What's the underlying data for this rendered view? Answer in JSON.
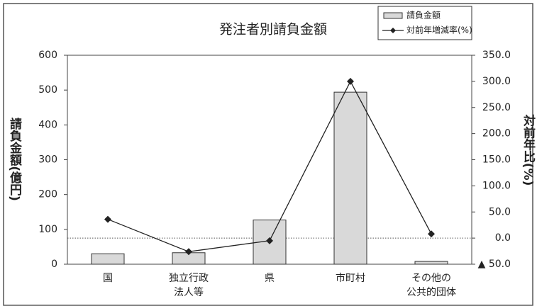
{
  "chart_data": {
    "type": "bar_line",
    "title": "発注者別請負金額",
    "categories": [
      [
        "国"
      ],
      [
        "独立行政",
        "法人等"
      ],
      [
        "県"
      ],
      [
        "市町村"
      ],
      [
        "その他の",
        "公共的団体"
      ]
    ],
    "series": [
      {
        "name": "請負金額",
        "type": "bar",
        "color": "#d9d9d9",
        "values": [
          30,
          33,
          127,
          494,
          8
        ]
      },
      {
        "name": "対前年増減率(%)",
        "type": "line",
        "axis": "y2",
        "color": "#222222",
        "values": [
          36,
          -26,
          -5,
          300,
          8
        ]
      }
    ],
    "ylabel": "請負金額(億円)",
    "y2label": "対前年比(%)",
    "ylim": [
      0,
      600
    ],
    "yticks": [
      0,
      100,
      200,
      300,
      400,
      500,
      600
    ],
    "y2lim": [
      -50,
      350
    ],
    "y2ticks": [
      {
        "value": -50,
        "label": "▲ 50.0"
      },
      {
        "value": 0,
        "label": "0.0"
      },
      {
        "value": 50,
        "label": "50.0"
      },
      {
        "value": 100,
        "label": "100.0"
      },
      {
        "value": 150,
        "label": "150.0"
      },
      {
        "value": 200,
        "label": "200.0"
      },
      {
        "value": 250,
        "label": "250.0"
      },
      {
        "value": 300,
        "label": "300.0"
      },
      {
        "value": 350,
        "label": "350.0"
      }
    ],
    "y2_zero_line": true
  }
}
